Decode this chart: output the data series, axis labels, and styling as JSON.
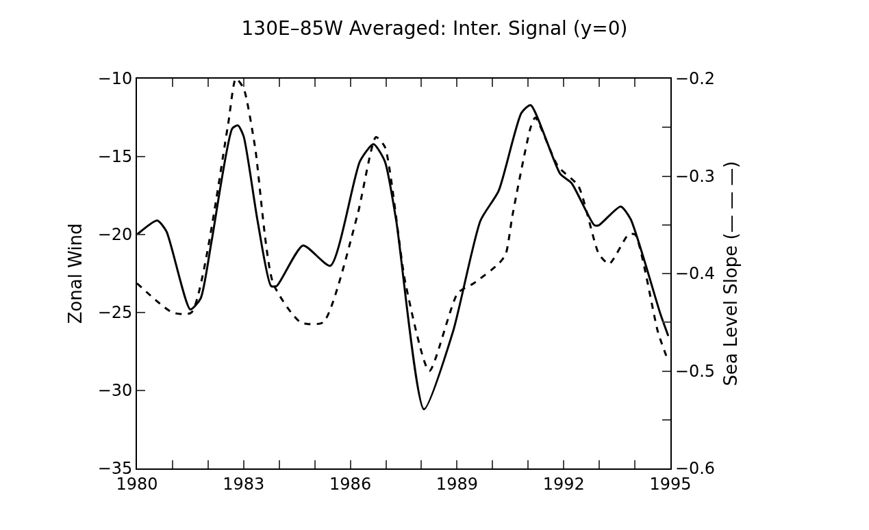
{
  "chart_data": {
    "type": "line",
    "title": "130E–85W Averaged: Inter. Signal (y=0)",
    "ylabel": "Zonal Wind",
    "y2label": "Sea Level Slope (— — —)",
    "xlim": [
      1980,
      1995
    ],
    "xticks": [
      1980,
      {
        "value": 1981,
        "label": null
      },
      {
        "value": 1982,
        "label": null
      },
      1983,
      {
        "value": 1984,
        "label": null
      },
      {
        "value": 1985,
        "label": null
      },
      1986,
      {
        "value": 1987,
        "label": null
      },
      {
        "value": 1988,
        "label": null
      },
      1989,
      {
        "value": 1990,
        "label": null
      },
      {
        "value": 1991,
        "label": null
      },
      1992,
      {
        "value": 1993,
        "label": null
      },
      {
        "value": 1994,
        "label": null
      },
      1995
    ],
    "ylim": [
      -35,
      -10
    ],
    "yticks": [
      -35,
      -30,
      -25,
      -20,
      -15,
      -10
    ],
    "y2lim": [
      -0.6,
      -0.2
    ],
    "y2ticks": [
      -0.6,
      {
        "value": -0.55,
        "label": null
      },
      -0.5,
      {
        "value": -0.45,
        "label": null
      },
      -0.4,
      {
        "value": -0.35,
        "label": null
      },
      -0.3,
      {
        "value": -0.25,
        "label": null
      },
      -0.2
    ],
    "series": [
      {
        "color": "#000000",
        "line_style": "solid",
        "x": [
          1980.0,
          1980.57,
          1980.83,
          1981.5,
          1981.79,
          1982.1,
          1982.68,
          1982.84,
          1983.0,
          1983.39,
          1983.77,
          1983.93,
          1984.67,
          1985.44,
          1986.27,
          1986.65,
          1986.97,
          1987.29,
          1988.07,
          1988.89,
          1989.66,
          1990.17,
          1990.81,
          1991.07,
          1991.9,
          1992.22,
          1992.86,
          1992.99,
          1993.6,
          1993.88,
          1994.72,
          1994.94
        ],
        "values": [
          -20.0,
          -19.1,
          -19.8,
          -24.8,
          -24.1,
          -20.4,
          -13.2,
          -13.0,
          -13.7,
          -19.1,
          -23.3,
          -23.3,
          -20.7,
          -22.0,
          -15.3,
          -14.2,
          -15.3,
          -19.1,
          -31.2,
          -26.2,
          -19.1,
          -17.2,
          -12.2,
          -11.7,
          -16.1,
          -16.7,
          -19.4,
          -19.4,
          -18.2,
          -19.0,
          -25.1,
          -26.5
        ]
      },
      {
        "color": "#000000",
        "line_style": "dashed",
        "axis": "y2",
        "x": [
          1980.0,
          1981.0,
          1981.53,
          1982.55,
          1982.78,
          1983.0,
          1983.32,
          1983.83,
          1984.6,
          1985.24,
          1986.2,
          1986.72,
          1986.97,
          1987.55,
          1988.22,
          1989.02,
          1989.47,
          1990.17,
          1990.37,
          1990.56,
          1991.07,
          1991.2,
          1991.84,
          1992.41,
          1992.99,
          1993.28,
          1993.82,
          1994.01,
          1994.65,
          1994.94
        ],
        "values": [
          -0.41,
          -0.44,
          -0.44,
          -0.25,
          -0.2,
          -0.21,
          -0.27,
          -0.41,
          -0.45,
          -0.45,
          -0.34,
          -0.26,
          -0.27,
          -0.41,
          -0.5,
          -0.42,
          -0.41,
          -0.39,
          -0.38,
          -0.34,
          -0.25,
          -0.24,
          -0.29,
          -0.31,
          -0.38,
          -0.39,
          -0.36,
          -0.36,
          -0.46,
          -0.49
        ]
      }
    ]
  }
}
